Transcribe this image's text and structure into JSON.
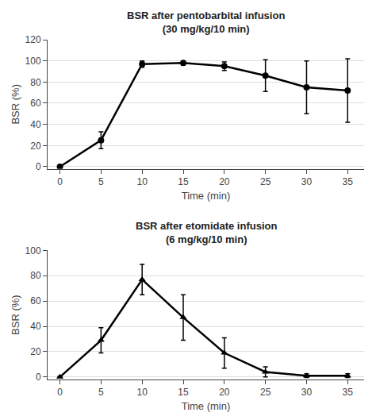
{
  "chart_data": [
    {
      "type": "line",
      "title": "BSR after pentobarbital infusion",
      "subtitle": "(30 mg/kg/10 min)",
      "x_label": "Time (min)",
      "y_label": "BSR (%)",
      "x": [
        0,
        5,
        10,
        15,
        20,
        25,
        30,
        35
      ],
      "values": [
        0,
        25,
        97,
        98,
        95,
        86,
        75,
        72
      ],
      "errors": [
        0.5,
        8,
        3,
        2,
        4,
        15,
        25,
        30
      ],
      "color": "black",
      "marker": "circle",
      "xlim": [
        -1.5,
        37
      ],
      "xticks": [
        0,
        5,
        10,
        15,
        20,
        25,
        30,
        35
      ],
      "ylim": [
        -2,
        120
      ],
      "yticks": [
        0,
        20,
        40,
        60,
        80,
        100,
        120
      ],
      "grid": true
    },
    {
      "type": "line",
      "title": "BSR after etomidate infusion",
      "subtitle": "(6 mg/kg/10 min)",
      "x_label": "Time (min)",
      "y_label": "BSR (%)",
      "x": [
        0,
        5,
        10,
        15,
        20,
        25,
        30,
        35
      ],
      "values": [
        0,
        29,
        77,
        47,
        19,
        4,
        1,
        1
      ],
      "errors": [
        0.5,
        10,
        12,
        18,
        12,
        4,
        1.5,
        1.5
      ],
      "color": "black",
      "marker": "triangle-up",
      "xlim": [
        -1.5,
        37
      ],
      "xticks": [
        0,
        5,
        10,
        15,
        20,
        25,
        30,
        35
      ],
      "ylim": [
        -2,
        100
      ],
      "yticks": [
        0,
        20,
        40,
        60,
        80,
        100
      ],
      "grid": true
    }
  ]
}
